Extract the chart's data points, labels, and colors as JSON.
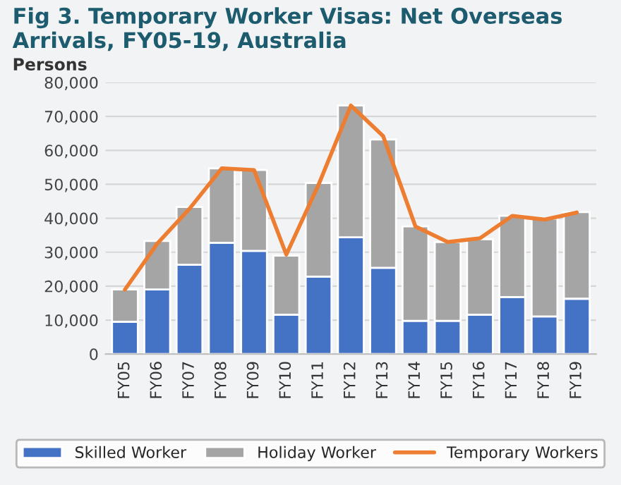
{
  "chart_data": {
    "type": "bar",
    "title": "Fig 3. Temporary Worker Visas: Net Overseas Arrivals, FY05-19, Australia",
    "ylabel": "Persons",
    "categories": [
      "FY05",
      "FY06",
      "FY07",
      "FY08",
      "FY09",
      "FY10",
      "FY11",
      "FY12",
      "FY13",
      "FY14",
      "FY15",
      "FY16",
      "FY17",
      "FY18",
      "FY19"
    ],
    "stacked": true,
    "series": [
      {
        "name": "Skilled Worker",
        "color": "#4472c4",
        "values": [
          9500,
          19000,
          26300,
          32800,
          30400,
          11600,
          22800,
          34400,
          25400,
          9800,
          9800,
          11600,
          16800,
          11100,
          16300
        ]
      },
      {
        "name": "Holiday Worker",
        "color": "#a5a5a5",
        "values": [
          9500,
          14300,
          17000,
          21900,
          23800,
          17400,
          27600,
          38800,
          37800,
          27800,
          23200,
          22200,
          23900,
          28800,
          25500
        ]
      },
      {
        "name": "Temporary Workers",
        "type": "line",
        "color": "#ed7d31",
        "values": [
          19000,
          32500,
          42800,
          54700,
          54200,
          29300,
          49900,
          73200,
          64200,
          37600,
          33000,
          34100,
          40700,
          39600,
          41700
        ]
      }
    ],
    "ylim": [
      0,
      80000
    ],
    "yticks": [
      {
        "value": 0,
        "label": "0"
      },
      {
        "value": 10000,
        "label": "10,000"
      },
      {
        "value": 20000,
        "label": "20,000"
      },
      {
        "value": 30000,
        "label": "30,000"
      },
      {
        "value": 40000,
        "label": "40,000"
      },
      {
        "value": 50000,
        "label": "50,000"
      },
      {
        "value": 60000,
        "label": "60,000"
      },
      {
        "value": 70000,
        "label": "70,000"
      },
      {
        "value": 80000,
        "label": "80,000"
      }
    ],
    "grid": "y",
    "legend": "bottom"
  }
}
